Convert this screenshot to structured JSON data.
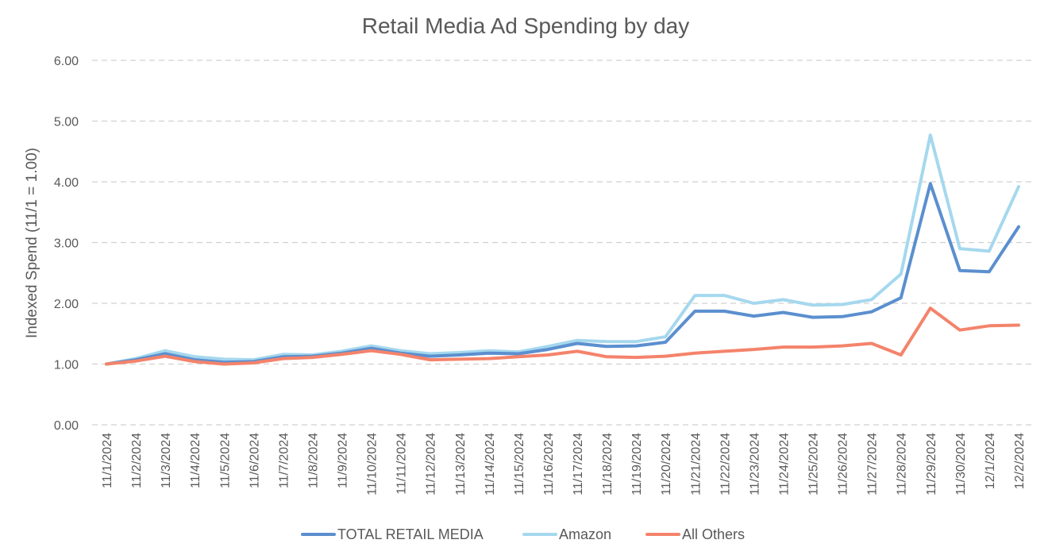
{
  "chart_data": {
    "type": "line",
    "title": "Retail Media Ad Spending by day",
    "xlabel": "",
    "ylabel": "Indexed Spend (11/1 = 1.00)",
    "ylim": [
      0,
      6
    ],
    "yticks": [
      "0.00",
      "1.00",
      "2.00",
      "3.00",
      "4.00",
      "5.00",
      "6.00"
    ],
    "grid": true,
    "legend_position": "bottom",
    "categories": [
      "11/1/2024",
      "11/2/2024",
      "11/3/2024",
      "11/4/2024",
      "11/5/2024",
      "11/6/2024",
      "11/7/2024",
      "11/8/2024",
      "11/9/2024",
      "11/10/2024",
      "11/11/2024",
      "11/12/2024",
      "11/13/2024",
      "11/14/2024",
      "11/15/2024",
      "11/16/2024",
      "11/17/2024",
      "11/18/2024",
      "11/19/2024",
      "11/20/2024",
      "11/21/2024",
      "11/22/2024",
      "11/23/2024",
      "11/24/2024",
      "11/25/2024",
      "11/26/2024",
      "11/27/2024",
      "11/28/2024",
      "11/29/2024",
      "11/30/2024",
      "12/1/2024",
      "12/2/2024"
    ],
    "series": [
      {
        "name": "TOTAL RETAIL MEDIA",
        "color": "#5b8fcf",
        "values": [
          1.0,
          1.07,
          1.17,
          1.07,
          1.03,
          1.04,
          1.12,
          1.13,
          1.18,
          1.26,
          1.18,
          1.13,
          1.15,
          1.18,
          1.17,
          1.24,
          1.34,
          1.29,
          1.3,
          1.36,
          1.87,
          1.87,
          1.79,
          1.85,
          1.77,
          1.78,
          1.86,
          2.09,
          3.97,
          2.54,
          2.52,
          3.26
        ]
      },
      {
        "name": "Amazon",
        "color": "#a5d8ee",
        "values": [
          1.0,
          1.09,
          1.22,
          1.12,
          1.08,
          1.07,
          1.16,
          1.15,
          1.21,
          1.3,
          1.22,
          1.17,
          1.19,
          1.22,
          1.2,
          1.29,
          1.39,
          1.37,
          1.37,
          1.45,
          2.13,
          2.13,
          2.0,
          2.06,
          1.97,
          1.98,
          2.06,
          2.48,
          4.77,
          2.9,
          2.86,
          3.92
        ]
      },
      {
        "name": "All Others",
        "color": "#f4836b",
        "values": [
          1.0,
          1.05,
          1.13,
          1.04,
          1.0,
          1.02,
          1.09,
          1.11,
          1.16,
          1.22,
          1.16,
          1.07,
          1.08,
          1.09,
          1.12,
          1.15,
          1.21,
          1.12,
          1.11,
          1.13,
          1.18,
          1.21,
          1.24,
          1.28,
          1.28,
          1.3,
          1.34,
          1.15,
          1.92,
          1.56,
          1.63,
          1.64
        ]
      }
    ]
  }
}
